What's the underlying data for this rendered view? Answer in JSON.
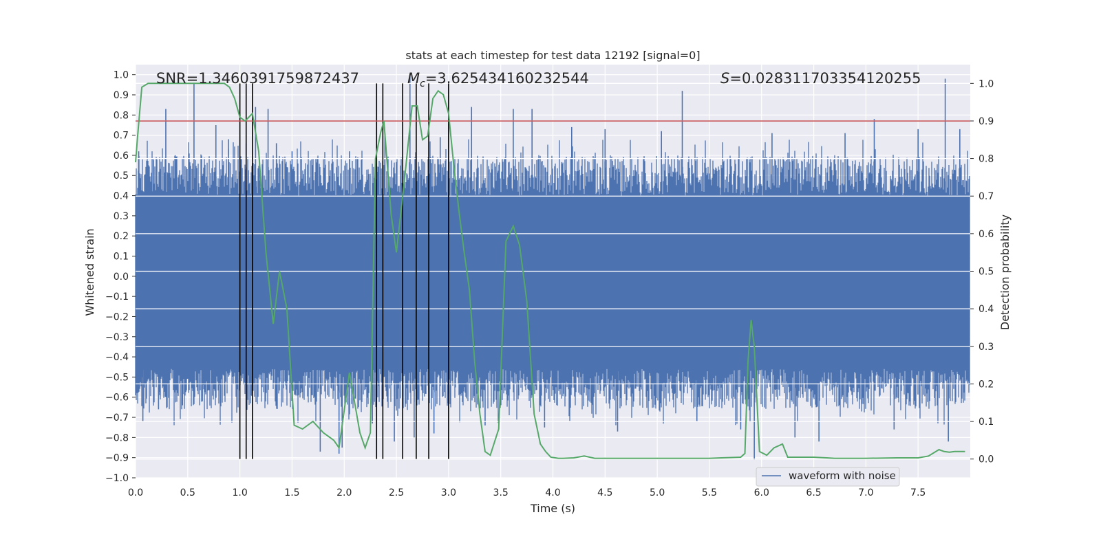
{
  "chart_data": {
    "type": "line",
    "title": "stats at each timestep for test data 12192 [signal=0]",
    "xlabel": "Time (s)",
    "ylabel": "Whitened strain",
    "y2label": "Detection probability",
    "xlim": [
      0.0,
      8.0
    ],
    "ylim": [
      -1.0,
      1.05
    ],
    "y2lim": [
      -0.05,
      1.05
    ],
    "x_ticks": [
      0.0,
      0.5,
      1.0,
      1.5,
      2.0,
      2.5,
      3.0,
      3.5,
      4.0,
      4.5,
      5.0,
      5.5,
      6.0,
      6.5,
      7.0,
      7.5
    ],
    "x_tick_labels": [
      "0.0",
      "0.5",
      "1.0",
      "1.5",
      "2.0",
      "2.5",
      "3.0",
      "3.5",
      "4.0",
      "4.5",
      "5.0",
      "5.5",
      "6.0",
      "6.5",
      "7.0",
      "7.5"
    ],
    "y_ticks": [
      -1.0,
      -0.9,
      -0.8,
      -0.7,
      -0.6,
      -0.5,
      -0.4,
      -0.3,
      -0.2,
      -0.1,
      0.0,
      0.1,
      0.2,
      0.3,
      0.4,
      0.5,
      0.6,
      0.7,
      0.8,
      0.9,
      1.0
    ],
    "y_tick_labels": [
      "−1.0",
      "−0.9",
      "−0.8",
      "−0.7",
      "−0.6",
      "−0.5",
      "−0.4",
      "−0.3",
      "−0.2",
      "−0.1",
      "0.0",
      "0.1",
      "0.2",
      "0.3",
      "0.4",
      "0.5",
      "0.6",
      "0.7",
      "0.8",
      "0.9",
      "1.0"
    ],
    "y2_ticks": [
      0.0,
      0.1,
      0.2,
      0.3,
      0.4,
      0.5,
      0.6,
      0.7,
      0.8,
      0.9,
      1.0
    ],
    "y2_tick_labels": [
      "0.0",
      "0.1",
      "0.2",
      "0.3",
      "0.4",
      "0.5",
      "0.6",
      "0.7",
      "0.8",
      "0.9",
      "1.0"
    ],
    "grid": true,
    "legend": {
      "placement": "lower-right",
      "entries": [
        "waveform with noise"
      ]
    },
    "annotations": {
      "snr": "SNR=1.3460391759872437",
      "mc_symbol": "M",
      "mc_subscript": "c",
      "mc_value": "=3.625434160232544",
      "s_symbol": "S",
      "s_value": "=0.028311703354120255"
    },
    "threshold": {
      "y2": 0.9,
      "color": "#c44e52"
    },
    "vlines": {
      "x": [
        1.0,
        1.06,
        1.12,
        2.31,
        2.37,
        2.56,
        2.69,
        2.81,
        3.0
      ],
      "y2_range": [
        0.0,
        1.0
      ],
      "color": "#000000"
    },
    "waveform": {
      "name": "waveform with noise",
      "color": "#4c72b0",
      "x_range": [
        0.0,
        8.0
      ],
      "core_band": [
        -0.46,
        0.4
      ],
      "spikes": [
        [
          0.03,
          0.62
        ],
        [
          0.07,
          -0.72
        ],
        [
          0.17,
          0.58
        ],
        [
          0.22,
          -0.66
        ],
        [
          0.29,
          0.83
        ],
        [
          0.38,
          0.6
        ],
        [
          0.45,
          -0.64
        ],
        [
          0.56,
          0.96
        ],
        [
          0.64,
          -0.62
        ],
        [
          0.77,
          0.75
        ],
        [
          0.89,
          0.68
        ],
        [
          1.06,
          0.66
        ],
        [
          1.15,
          0.84
        ],
        [
          1.27,
          0.83
        ],
        [
          1.35,
          0.66
        ],
        [
          1.5,
          0.62
        ],
        [
          1.77,
          -0.87
        ],
        [
          1.95,
          -0.88
        ],
        [
          1.98,
          -0.85
        ],
        [
          2.05,
          0.62
        ],
        [
          2.27,
          -0.73
        ],
        [
          2.39,
          0.71
        ],
        [
          2.48,
          -0.82
        ],
        [
          2.63,
          1.0
        ],
        [
          2.67,
          -0.8
        ],
        [
          2.86,
          -0.78
        ],
        [
          2.92,
          0.69
        ],
        [
          3.22,
          0.84
        ],
        [
          3.35,
          -0.74
        ],
        [
          3.62,
          0.83
        ],
        [
          3.8,
          0.83
        ],
        [
          3.92,
          -0.75
        ],
        [
          4.18,
          0.74
        ],
        [
          4.5,
          0.73
        ],
        [
          4.62,
          -0.77
        ],
        [
          5.04,
          0.72
        ],
        [
          5.24,
          0.92
        ],
        [
          5.38,
          -0.72
        ],
        [
          5.8,
          -0.76
        ],
        [
          5.93,
          -0.91
        ],
        [
          6.1,
          0.71
        ],
        [
          6.32,
          -0.8
        ],
        [
          6.55,
          -0.82
        ],
        [
          6.8,
          0.71
        ],
        [
          7.08,
          0.78
        ],
        [
          7.27,
          -0.76
        ],
        [
          7.5,
          0.73
        ],
        [
          7.76,
          0.98
        ],
        [
          7.79,
          -0.82
        ],
        [
          7.9,
          0.73
        ]
      ]
    },
    "detection_probability": {
      "color": "#55a868",
      "x": [
        0.0,
        0.02,
        0.06,
        0.12,
        0.5,
        0.85,
        0.9,
        0.95,
        1.0,
        1.05,
        1.12,
        1.18,
        1.25,
        1.32,
        1.38,
        1.45,
        1.52,
        1.6,
        1.7,
        1.8,
        1.9,
        1.95,
        2.05,
        2.15,
        2.2,
        2.25,
        2.3,
        2.35,
        2.38,
        2.45,
        2.5,
        2.58,
        2.65,
        2.7,
        2.75,
        2.8,
        2.85,
        2.9,
        2.95,
        3.0,
        3.05,
        3.1,
        3.15,
        3.2,
        3.25,
        3.3,
        3.35,
        3.4,
        3.48,
        3.55,
        3.62,
        3.68,
        3.75,
        3.82,
        3.88,
        3.93,
        3.98,
        4.05,
        4.1,
        4.2,
        4.3,
        4.4,
        4.5,
        4.7,
        5.0,
        5.5,
        5.8,
        5.84,
        5.87,
        5.9,
        5.93,
        5.98,
        6.05,
        6.12,
        6.2,
        6.25,
        6.35,
        6.5,
        6.7,
        7.0,
        7.3,
        7.5,
        7.6,
        7.7,
        7.75,
        7.8,
        7.85,
        7.95
      ],
      "y": [
        0.79,
        0.86,
        0.99,
        1.0,
        1.0,
        1.0,
        0.99,
        0.96,
        0.91,
        0.9,
        0.92,
        0.82,
        0.55,
        0.36,
        0.5,
        0.4,
        0.09,
        0.08,
        0.1,
        0.07,
        0.05,
        0.03,
        0.23,
        0.07,
        0.03,
        0.07,
        0.8,
        0.87,
        0.9,
        0.65,
        0.55,
        0.75,
        0.94,
        0.94,
        0.85,
        0.86,
        0.96,
        0.98,
        0.97,
        0.92,
        0.78,
        0.66,
        0.55,
        0.45,
        0.26,
        0.12,
        0.02,
        0.01,
        0.08,
        0.58,
        0.62,
        0.57,
        0.42,
        0.12,
        0.04,
        0.02,
        0.005,
        0.002,
        0.002,
        0.003,
        0.008,
        0.002,
        0.002,
        0.002,
        0.002,
        0.002,
        0.005,
        0.015,
        0.26,
        0.37,
        0.3,
        0.02,
        0.01,
        0.03,
        0.04,
        0.005,
        0.005,
        0.005,
        0.002,
        0.002,
        0.003,
        0.003,
        0.008,
        0.025,
        0.02,
        0.018,
        0.02,
        0.02
      ]
    }
  }
}
